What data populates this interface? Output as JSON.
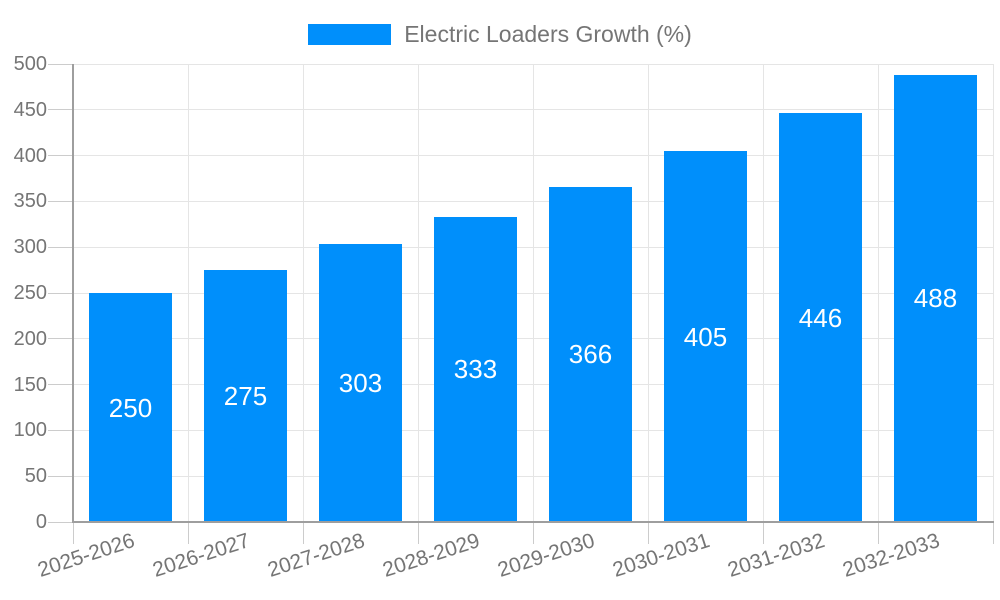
{
  "legend": {
    "label": "Electric Loaders Growth (%)"
  },
  "chart_data": {
    "type": "bar",
    "title": "Electric Loaders Growth (%)",
    "categories": [
      "2025-2026",
      "2026-2027",
      "2027-2028",
      "2028-2029",
      "2029-2030",
      "2030-2031",
      "2031-2032",
      "2032-2033"
    ],
    "values": [
      250,
      275,
      303,
      333,
      366,
      405,
      446,
      488
    ],
    "xlabel": "",
    "ylabel": "",
    "ylim": [
      0,
      500
    ],
    "ytick_step": 50,
    "grid": true,
    "legend_position": "top",
    "colors": {
      "bar": "#008FFB",
      "value_label": "#ffffff",
      "axis_label": "#757575",
      "legend_label": "#757575",
      "grid_line": "#e5e5e5",
      "tick_line": "#cccccc",
      "axis_line": "#9e9e9e",
      "background": "#ffffff"
    }
  }
}
